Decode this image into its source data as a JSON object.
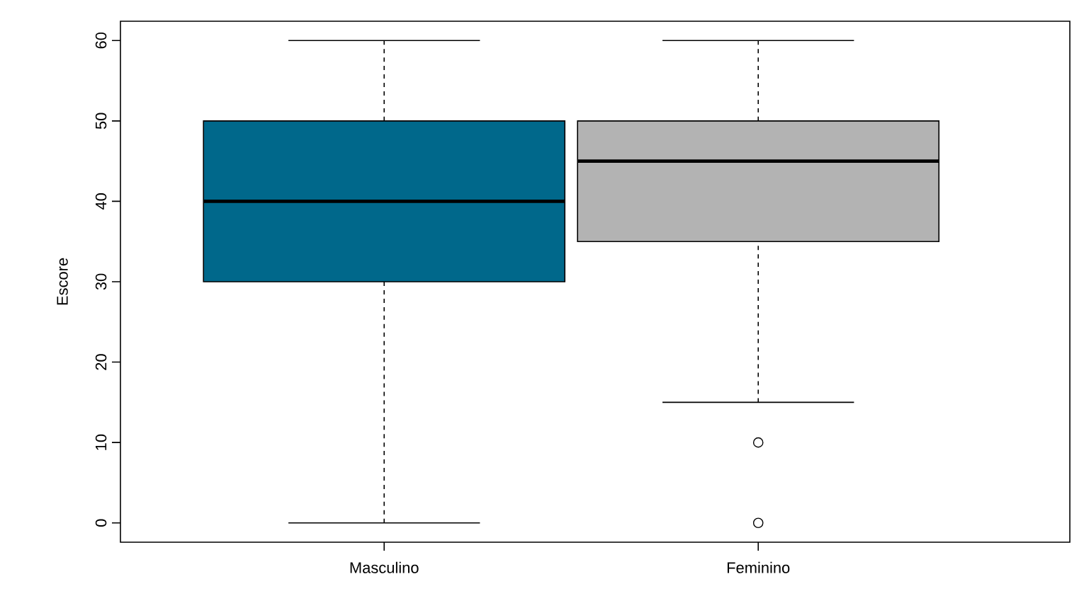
{
  "chart_data": {
    "type": "box",
    "ylabel": "Escore",
    "categories": [
      "Masculino",
      "Feminino"
    ],
    "colors": [
      "#00688b",
      "#b3b3b3"
    ],
    "boxes": [
      {
        "low": 0,
        "q1": 30,
        "median": 40,
        "q3": 50,
        "high": 60
      },
      {
        "low": 15,
        "q1": 35,
        "median": 45,
        "q3": 50,
        "high": 60,
        "outliers": [
          10,
          0
        ]
      }
    ],
    "ylim": [
      -2.4,
      62.4
    ],
    "yticks": [
      0,
      10,
      20,
      30,
      40,
      50,
      60
    ],
    "grid": false
  }
}
